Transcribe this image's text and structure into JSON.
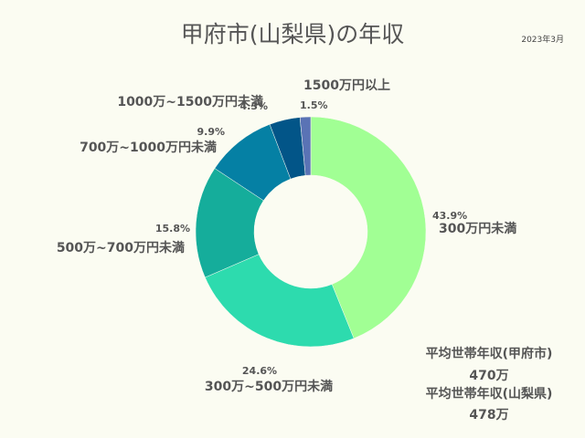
{
  "header": {
    "title": "甲府市(山梨県)の年収",
    "date": "2023年3月"
  },
  "chart_data": {
    "type": "pie",
    "donut": true,
    "title": "甲府市(山梨県)の年収",
    "slices": [
      {
        "label": "300万円未満",
        "value": 43.9,
        "value_label": "43.9%",
        "color": "#a1ff94"
      },
      {
        "label": "300万~500万円未満",
        "value": 24.6,
        "value_label": "24.6%",
        "color": "#2ddbae"
      },
      {
        "label": "500万~700万円未満",
        "value": 15.8,
        "value_label": "15.8%",
        "color": "#15ad9b"
      },
      {
        "label": "700万~1000万円未満",
        "value": 9.9,
        "value_label": "9.9%",
        "color": "#0580a4"
      },
      {
        "label": "1000万~1500万円未満",
        "value": 4.3,
        "value_label": "4.3%",
        "color": "#025588"
      },
      {
        "label": "1500万円以上",
        "value": 1.5,
        "value_label": "1.5%",
        "color": "#5a73b5"
      }
    ]
  },
  "notes": {
    "city_label": "平均世帯年収(甲府市)",
    "city_value": "470万",
    "pref_label": "平均世帯年収(山梨県)",
    "pref_value": "478万"
  }
}
